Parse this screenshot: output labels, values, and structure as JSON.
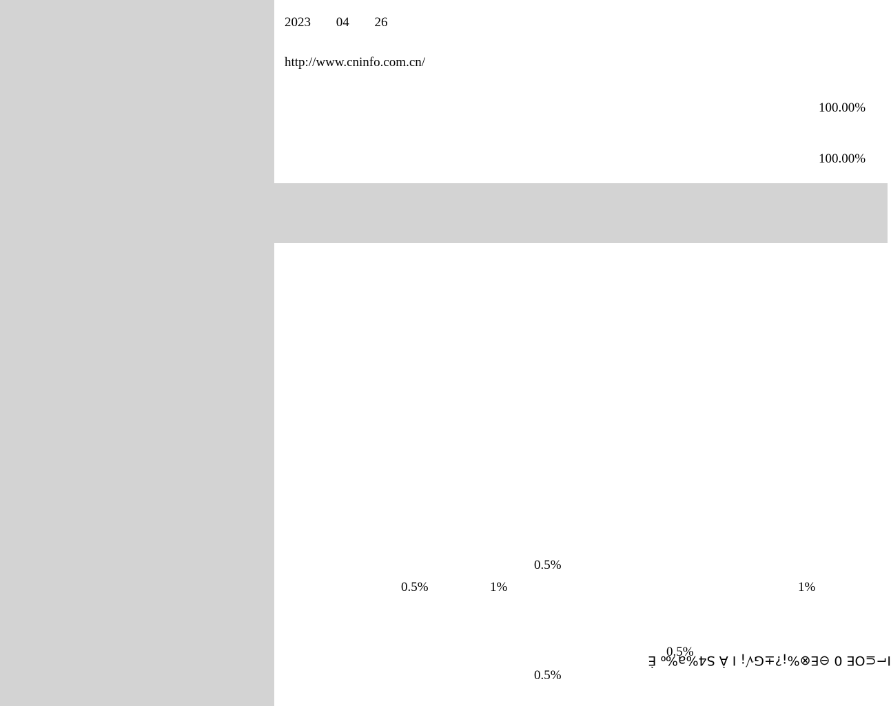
{
  "left_panel": {},
  "header": {
    "date_year": "2023",
    "date_month": "04",
    "date_day": "26",
    "url": "http://www.cninfo.com.cn/"
  },
  "percentages": {
    "first": "100.00%",
    "second": "100.00%"
  },
  "rates": {
    "a_top": "0.5%",
    "a_left": "0.5%",
    "b_left": "1%",
    "b_right": "1%",
    "c_mid": "0.5%",
    "c_bottom": "0.5%"
  },
  "garbled_text": "I⌐⊆OE 0 ⊖E⊗%¡?±G√¡ I À S4%a‰ È"
}
